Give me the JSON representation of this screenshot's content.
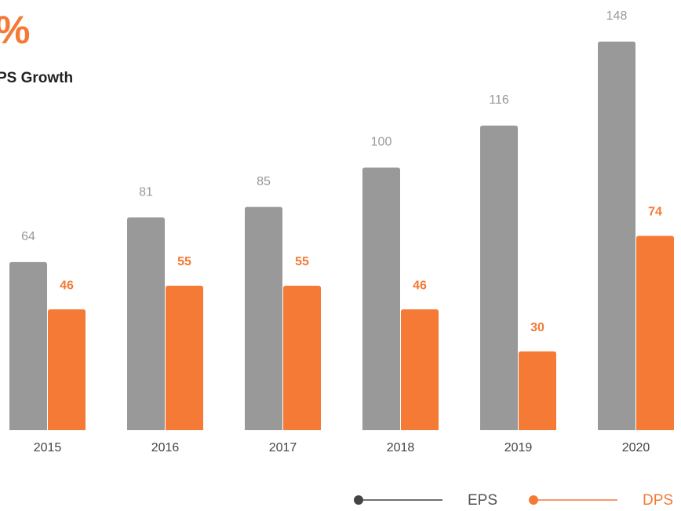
{
  "chart_data": {
    "type": "bar",
    "title": "%",
    "subtitle": "PS Growth",
    "categories": [
      "2015",
      "2016",
      "2017",
      "2018",
      "2019",
      "2020"
    ],
    "series": [
      {
        "name": "EPS",
        "color": "#999999",
        "values": [
          64,
          81,
          85,
          100,
          116,
          148
        ]
      },
      {
        "name": "DPS",
        "color": "#f47a36",
        "values": [
          46,
          55,
          55,
          46,
          30,
          74
        ]
      }
    ]
  }
}
